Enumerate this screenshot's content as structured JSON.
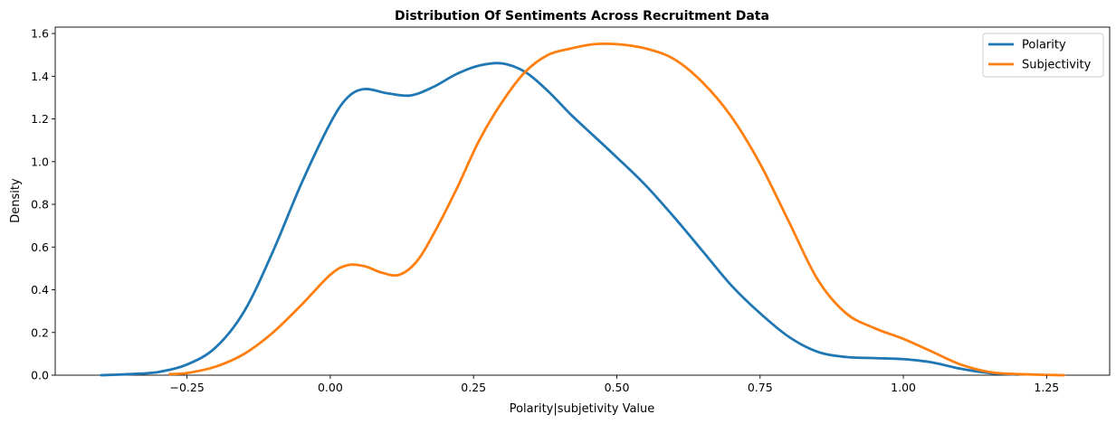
{
  "chart_data": {
    "type": "line",
    "title": "Distribution Of Sentiments Across Recruitment Data",
    "xlabel": "Polarity|subjetivity Value",
    "ylabel": "Density",
    "xlim": [
      -0.48,
      1.36
    ],
    "ylim": [
      0,
      1.63
    ],
    "xticks": [
      -0.25,
      0.0,
      0.25,
      0.5,
      0.75,
      1.0,
      1.25
    ],
    "xtick_labels": [
      "−0.25",
      "0.00",
      "0.25",
      "0.50",
      "0.75",
      "1.00",
      "1.25"
    ],
    "yticks": [
      0.0,
      0.2,
      0.4,
      0.6,
      0.8,
      1.0,
      1.2,
      1.4,
      1.6
    ],
    "ytick_labels": [
      "0.0",
      "0.2",
      "0.4",
      "0.6",
      "0.8",
      "1.0",
      "1.2",
      "1.4",
      "1.6"
    ],
    "grid": false,
    "legend_position": "top-right",
    "series": [
      {
        "name": "Polarity",
        "color": "#1f77b4",
        "points": [
          [
            -0.4,
            0.0
          ],
          [
            -0.35,
            0.005
          ],
          [
            -0.3,
            0.015
          ],
          [
            -0.25,
            0.05
          ],
          [
            -0.2,
            0.13
          ],
          [
            -0.15,
            0.3
          ],
          [
            -0.1,
            0.58
          ],
          [
            -0.05,
            0.9
          ],
          [
            0.0,
            1.18
          ],
          [
            0.03,
            1.3
          ],
          [
            0.06,
            1.34
          ],
          [
            0.1,
            1.32
          ],
          [
            0.14,
            1.31
          ],
          [
            0.18,
            1.35
          ],
          [
            0.22,
            1.41
          ],
          [
            0.26,
            1.45
          ],
          [
            0.3,
            1.46
          ],
          [
            0.34,
            1.42
          ],
          [
            0.38,
            1.33
          ],
          [
            0.42,
            1.22
          ],
          [
            0.46,
            1.12
          ],
          [
            0.5,
            1.02
          ],
          [
            0.55,
            0.89
          ],
          [
            0.6,
            0.74
          ],
          [
            0.65,
            0.58
          ],
          [
            0.7,
            0.42
          ],
          [
            0.75,
            0.29
          ],
          [
            0.8,
            0.18
          ],
          [
            0.85,
            0.11
          ],
          [
            0.9,
            0.085
          ],
          [
            0.95,
            0.08
          ],
          [
            1.0,
            0.075
          ],
          [
            1.05,
            0.06
          ],
          [
            1.1,
            0.03
          ],
          [
            1.15,
            0.01
          ],
          [
            1.2,
            0.003
          ]
        ]
      },
      {
        "name": "Subjectivity",
        "color": "#ff7f0e",
        "points": [
          [
            -0.28,
            0.005
          ],
          [
            -0.25,
            0.01
          ],
          [
            -0.2,
            0.04
          ],
          [
            -0.15,
            0.1
          ],
          [
            -0.1,
            0.2
          ],
          [
            -0.05,
            0.33
          ],
          [
            0.0,
            0.47
          ],
          [
            0.03,
            0.515
          ],
          [
            0.06,
            0.51
          ],
          [
            0.09,
            0.48
          ],
          [
            0.12,
            0.47
          ],
          [
            0.15,
            0.53
          ],
          [
            0.18,
            0.66
          ],
          [
            0.22,
            0.87
          ],
          [
            0.26,
            1.1
          ],
          [
            0.3,
            1.28
          ],
          [
            0.34,
            1.42
          ],
          [
            0.38,
            1.5
          ],
          [
            0.42,
            1.53
          ],
          [
            0.46,
            1.55
          ],
          [
            0.5,
            1.55
          ],
          [
            0.55,
            1.53
          ],
          [
            0.6,
            1.48
          ],
          [
            0.65,
            1.37
          ],
          [
            0.7,
            1.21
          ],
          [
            0.75,
            0.99
          ],
          [
            0.8,
            0.72
          ],
          [
            0.85,
            0.45
          ],
          [
            0.9,
            0.29
          ],
          [
            0.95,
            0.22
          ],
          [
            1.0,
            0.17
          ],
          [
            1.05,
            0.11
          ],
          [
            1.1,
            0.05
          ],
          [
            1.15,
            0.015
          ],
          [
            1.2,
            0.005
          ],
          [
            1.28,
            0.0
          ]
        ]
      }
    ]
  }
}
